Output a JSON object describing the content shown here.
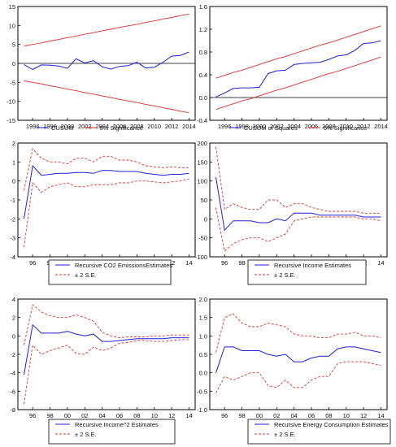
{
  "colors": {
    "estimate": "#1f1fdc",
    "bounds": "#e03030",
    "zero_line": "#000000",
    "frame": "#000000"
  },
  "chart_data": [
    {
      "type": "line",
      "x": [
        1995,
        1996,
        1997,
        1998,
        1999,
        2000,
        2001,
        2002,
        2003,
        2004,
        2005,
        2006,
        2007,
        2008,
        2009,
        2010,
        2011,
        2012,
        2013,
        2014
      ],
      "xticks": [
        1996,
        1998,
        2000,
        2002,
        2004,
        2006,
        2008,
        2010,
        2012,
        2014
      ],
      "xtick_labels": [
        "1996",
        "1998",
        "2000",
        "2002",
        "2004",
        "2006",
        "2008",
        "2010",
        "2012",
        "2014"
      ],
      "xlim": [
        1994.3,
        2014.7
      ],
      "ylim": [
        -15,
        15
      ],
      "yticks": [
        -15,
        -10,
        -5,
        0,
        5,
        10,
        15
      ],
      "ytick_labels": [
        "-15",
        "-10",
        "-5",
        "0",
        "5",
        "10",
        "15"
      ],
      "zero_line": true,
      "series": [
        {
          "name": "CUSUM",
          "role": "estimate",
          "values": [
            -0.3,
            -1.6,
            -0.4,
            -0.5,
            -0.7,
            -1.3,
            1.2,
            0.1,
            0.7,
            -0.9,
            -1.5,
            -0.8,
            -0.6,
            0.3,
            -1.2,
            -1.0,
            0.3,
            1.9,
            2.1,
            3.0
          ]
        },
        {
          "name": "5% Significance",
          "role": "bound",
          "values": [
            4.6,
            5.0,
            5.4,
            5.9,
            6.3,
            6.8,
            7.2,
            7.7,
            8.1,
            8.6,
            9.0,
            9.5,
            9.9,
            10.3,
            10.8,
            11.2,
            11.7,
            12.1,
            12.6,
            13.0
          ]
        },
        {
          "role": "bound",
          "values": [
            -4.6,
            -5.0,
            -5.4,
            -5.9,
            -6.3,
            -6.8,
            -7.2,
            -7.7,
            -8.1,
            -8.6,
            -9.0,
            -9.5,
            -9.9,
            -10.3,
            -10.8,
            -11.2,
            -11.7,
            -12.1,
            -12.6,
            -13.0
          ]
        }
      ],
      "legend": {
        "labels": [
          "CUSUM",
          "5% Significance"
        ]
      }
    },
    {
      "type": "line",
      "x": [
        1995,
        1996,
        1997,
        1998,
        1999,
        2000,
        2001,
        2002,
        2003,
        2004,
        2005,
        2006,
        2007,
        2008,
        2009,
        2010,
        2011,
        2012,
        2013,
        2014
      ],
      "xticks": [
        1996,
        1998,
        2000,
        2002,
        2004,
        2006,
        2008,
        2010,
        2012,
        2014
      ],
      "xtick_labels": [
        "1996",
        "1998",
        "2000",
        "2002",
        "2004",
        "2006",
        "2008",
        "2010",
        "2012",
        "2014"
      ],
      "xlim": [
        1994.3,
        2014.7
      ],
      "ylim": [
        -0.4,
        1.6
      ],
      "yticks": [
        -0.4,
        0.0,
        0.4,
        0.8,
        1.2,
        1.6
      ],
      "ytick_labels": [
        "-0.4",
        "0.0",
        "0.4",
        "0.8",
        "1.2",
        "1.6"
      ],
      "zero_line": true,
      "series": [
        {
          "name": "CUSUM of Squares",
          "role": "estimate",
          "values": [
            0.01,
            0.08,
            0.16,
            0.17,
            0.17,
            0.18,
            0.42,
            0.47,
            0.48,
            0.58,
            0.6,
            0.61,
            0.62,
            0.67,
            0.73,
            0.75,
            0.83,
            0.95,
            0.96,
            1.0
          ]
        },
        {
          "name": "5% Significance",
          "role": "bound",
          "values": [
            0.34,
            0.39,
            0.44,
            0.48,
            0.53,
            0.58,
            0.63,
            0.68,
            0.72,
            0.77,
            0.82,
            0.87,
            0.92,
            0.96,
            1.01,
            1.06,
            1.11,
            1.16,
            1.21,
            1.26
          ]
        },
        {
          "role": "bound",
          "values": [
            -0.21,
            -0.16,
            -0.11,
            -0.06,
            -0.02,
            0.03,
            0.08,
            0.13,
            0.17,
            0.22,
            0.27,
            0.32,
            0.37,
            0.42,
            0.46,
            0.51,
            0.56,
            0.61,
            0.66,
            0.71
          ]
        }
      ],
      "legend": {
        "labels": [
          "CUSUM of Squares",
          "5% Significance"
        ]
      }
    },
    {
      "type": "line",
      "x": [
        1995,
        1996,
        1997,
        1998,
        1999,
        2000,
        2001,
        2002,
        2003,
        2004,
        2005,
        2006,
        2007,
        2008,
        2009,
        2010,
        2011,
        2012,
        2013,
        2014
      ],
      "xticks": [
        1996,
        1998,
        2000,
        2002,
        2004,
        2006,
        2008,
        2010,
        2012,
        2014
      ],
      "xtick_labels": [
        "96",
        "98",
        "00",
        "02",
        "04",
        "06",
        "08",
        "10",
        "12",
        "14"
      ],
      "xlim": [
        1994.3,
        2014.7
      ],
      "ylim": [
        -4,
        2
      ],
      "yticks": [
        -4,
        -3,
        -2,
        -1,
        0,
        1,
        2
      ],
      "ytick_labels": [
        "-4",
        "-3",
        "-2",
        "-1",
        "0",
        "1",
        "2"
      ],
      "zero_line": false,
      "series": [
        {
          "name": "Recursive CO2 EmissionsEstimates",
          "role": "estimate",
          "values": [
            -2.0,
            0.8,
            0.3,
            0.35,
            0.4,
            0.4,
            0.45,
            0.45,
            0.4,
            0.55,
            0.55,
            0.5,
            0.5,
            0.5,
            0.4,
            0.35,
            0.3,
            0.35,
            0.35,
            0.4
          ]
        },
        {
          "name": "± 2 S.E.",
          "role": "bound",
          "values": [
            -0.5,
            1.7,
            1.2,
            1.0,
            1.0,
            0.9,
            1.2,
            1.2,
            1.0,
            1.3,
            1.3,
            1.1,
            1.1,
            1.0,
            0.8,
            0.75,
            0.7,
            0.75,
            0.7,
            0.7
          ]
        },
        {
          "role": "bound",
          "values": [
            -3.5,
            -0.1,
            -0.6,
            -0.3,
            -0.2,
            -0.1,
            -0.3,
            -0.3,
            -0.2,
            -0.2,
            -0.2,
            -0.1,
            -0.1,
            0.0,
            0.0,
            -0.05,
            -0.1,
            -0.05,
            0.0,
            0.1
          ]
        }
      ],
      "legend": {
        "labels": [
          "Recursive CO2 EmissionsEstimates",
          "± 2 S.E."
        ]
      }
    },
    {
      "type": "line",
      "x": [
        1995,
        1996,
        1997,
        1998,
        1999,
        2000,
        2001,
        2002,
        2003,
        2004,
        2005,
        2006,
        2007,
        2008,
        2009,
        2010,
        2011,
        2012,
        2013,
        2014
      ],
      "xticks": [
        1996,
        1998,
        2000,
        2002,
        2004,
        2006,
        2008,
        2010,
        2012,
        2014
      ],
      "xtick_labels": [
        "96",
        "98",
        "00",
        "02",
        "04",
        "06",
        "08",
        "10",
        "12",
        "14"
      ],
      "xlim": [
        1994.3,
        2014.7
      ],
      "ylim": [
        -100,
        200
      ],
      "yticks": [
        -100,
        -50,
        0,
        50,
        100,
        150,
        200
      ],
      "ytick_labels": [
        "-100",
        "-50",
        "0",
        "50",
        "100",
        "150",
        "200"
      ],
      "zero_line": false,
      "series": [
        {
          "name": "Recursive Income Estimates",
          "role": "estimate",
          "values": [
            110,
            -30,
            -5,
            -5,
            -5,
            -10,
            -10,
            0,
            -5,
            15,
            15,
            15,
            10,
            10,
            10,
            10,
            10,
            5,
            5,
            5
          ]
        },
        {
          "name": "± 2 S.E.",
          "role": "bound",
          "values": [
            190,
            25,
            40,
            30,
            25,
            25,
            50,
            50,
            30,
            40,
            40,
            30,
            25,
            20,
            20,
            20,
            20,
            15,
            15,
            15
          ]
        },
        {
          "role": "bound",
          "values": [
            30,
            -85,
            -65,
            -55,
            -50,
            -50,
            -60,
            -50,
            -40,
            -5,
            0,
            5,
            5,
            5,
            5,
            5,
            5,
            0,
            0,
            -5
          ]
        }
      ],
      "legend": {
        "labels": [
          "Recursive Income Estimates",
          "± 2 S.E."
        ]
      }
    },
    {
      "type": "line",
      "x": [
        1995,
        1996,
        1997,
        1998,
        1999,
        2000,
        2001,
        2002,
        2003,
        2004,
        2005,
        2006,
        2007,
        2008,
        2009,
        2010,
        2011,
        2012,
        2013,
        2014
      ],
      "xticks": [
        1996,
        1998,
        2000,
        2002,
        2004,
        2006,
        2008,
        2010,
        2012,
        2014
      ],
      "xtick_labels": [
        "96",
        "98",
        "00",
        "02",
        "04",
        "06",
        "08",
        "10",
        "12",
        "14"
      ],
      "xlim": [
        1994.3,
        2014.7
      ],
      "ylim": [
        -8,
        4
      ],
      "yticks": [
        -8,
        -6,
        -4,
        -2,
        0,
        2,
        4
      ],
      "ytick_labels": [
        "-8",
        "-6",
        "-4",
        "-2",
        "0",
        "2",
        "4"
      ],
      "zero_line": false,
      "series": [
        {
          "name": "Recursive Income^2 Estimates",
          "role": "estimate",
          "values": [
            -4.2,
            1.2,
            0.3,
            0.3,
            0.3,
            0.5,
            0.2,
            0.0,
            0.2,
            -0.6,
            -0.6,
            -0.5,
            -0.4,
            -0.3,
            -0.3,
            -0.3,
            -0.3,
            -0.2,
            -0.2,
            -0.2
          ]
        },
        {
          "name": "± 2 S.E.",
          "role": "bound",
          "values": [
            -1.0,
            3.4,
            2.6,
            2.2,
            2.0,
            2.0,
            2.3,
            2.0,
            1.6,
            0.4,
            0.0,
            -0.2,
            -0.1,
            -0.1,
            -0.1,
            0.0,
            0.0,
            0.1,
            0.1,
            0.1
          ]
        },
        {
          "role": "bound",
          "values": [
            -7.4,
            -1.0,
            -2.0,
            -1.6,
            -1.3,
            -1.0,
            -1.9,
            -2.0,
            -1.2,
            -1.6,
            -1.3,
            -0.8,
            -0.7,
            -0.5,
            -0.5,
            -0.6,
            -0.6,
            -0.5,
            -0.4,
            -0.4
          ]
        }
      ],
      "legend": {
        "labels": [
          "Recursive Income^2 Estimates",
          "± 2 S.E."
        ]
      }
    },
    {
      "type": "line",
      "x": [
        1995,
        1996,
        1997,
        1998,
        1999,
        2000,
        2001,
        2002,
        2003,
        2004,
        2005,
        2006,
        2007,
        2008,
        2009,
        2010,
        2011,
        2012,
        2013,
        2014
      ],
      "xticks": [
        1996,
        1998,
        2000,
        2002,
        2004,
        2006,
        2008,
        2010,
        2012,
        2014
      ],
      "xtick_labels": [
        "96",
        "98",
        "00",
        "02",
        "04",
        "06",
        "08",
        "10",
        "12",
        "14"
      ],
      "xlim": [
        1994.3,
        2014.7
      ],
      "ylim": [
        -1.0,
        2.0
      ],
      "yticks": [
        -1.0,
        -0.5,
        0.0,
        0.5,
        1.0,
        1.5,
        2.0
      ],
      "ytick_labels": [
        "-1.0",
        "-0.5",
        "0.0",
        "0.5",
        "1.0",
        "1.5",
        "2.0"
      ],
      "zero_line": false,
      "series": [
        {
          "name": "Recursive Energy Consumption Estimates",
          "role": "estimate",
          "values": [
            0.0,
            0.7,
            0.7,
            0.6,
            0.6,
            0.6,
            0.5,
            0.45,
            0.5,
            0.3,
            0.3,
            0.4,
            0.45,
            0.45,
            0.65,
            0.7,
            0.7,
            0.65,
            0.6,
            0.55
          ]
        },
        {
          "name": "± 2 S.E.",
          "role": "bound",
          "values": [
            0.55,
            1.5,
            1.6,
            1.35,
            1.25,
            1.25,
            1.35,
            1.3,
            1.25,
            1.05,
            1.0,
            1.0,
            0.95,
            0.95,
            1.05,
            1.05,
            1.1,
            1.0,
            1.0,
            0.95
          ]
        },
        {
          "role": "bound",
          "values": [
            -0.55,
            -0.1,
            -0.2,
            -0.1,
            0.0,
            0.0,
            -0.35,
            -0.4,
            -0.2,
            -0.4,
            -0.4,
            -0.2,
            -0.1,
            -0.1,
            0.25,
            0.3,
            0.3,
            0.3,
            0.25,
            0.2
          ]
        }
      ],
      "legend": {
        "labels": [
          "Recursive Energy Consumption Estimates",
          "± 2 S.E."
        ]
      }
    }
  ]
}
